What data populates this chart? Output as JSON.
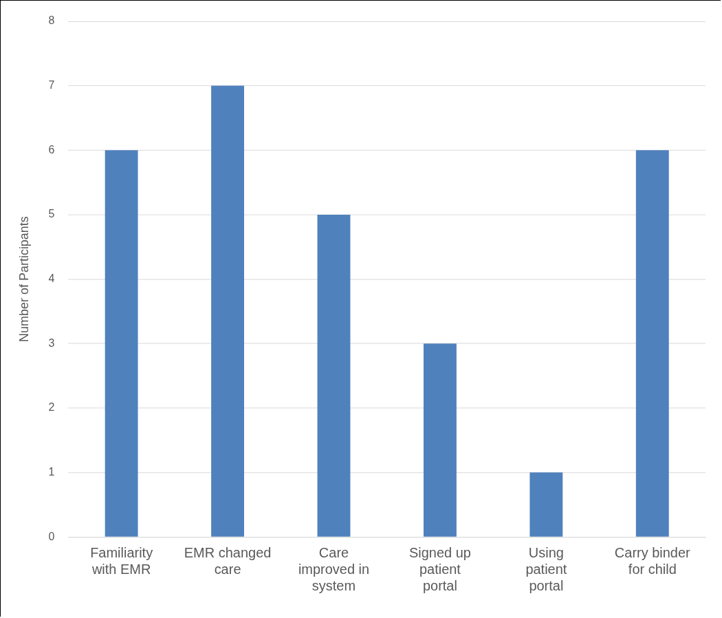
{
  "chart_data": {
    "type": "bar",
    "ylabel": "Number of Participants",
    "categories": [
      "Familiarity with EMR",
      "EMR changed care",
      "Care improved in system",
      "Signed up patient portal",
      "Using patient portal",
      "Carry binder for child"
    ],
    "values": [
      6,
      7,
      5,
      3,
      1,
      6
    ],
    "color": "#4f81bd",
    "ylim": [
      0,
      8
    ],
    "yticks": [
      0,
      1,
      2,
      3,
      4,
      5,
      6,
      7,
      8
    ],
    "grid": "y",
    "legend": false
  }
}
